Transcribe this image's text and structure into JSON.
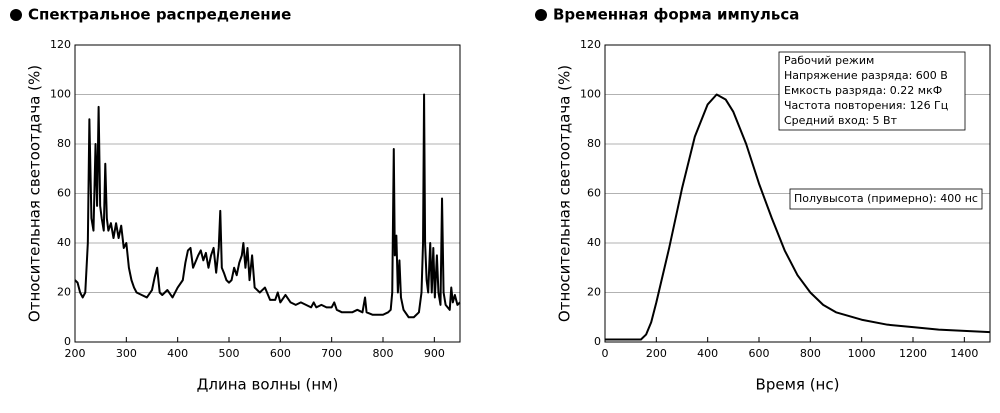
{
  "chart_data": [
    {
      "type": "line",
      "title": "Спектральное распределение",
      "xlabel": "Длина волны (нм)",
      "ylabel": "Относительная светоотдача (%)",
      "xlim": [
        200,
        950
      ],
      "ylim": [
        0,
        120
      ],
      "xticks": [
        200,
        300,
        400,
        500,
        600,
        700,
        800,
        900
      ],
      "yticks": [
        0,
        20,
        40,
        60,
        80,
        100,
        120
      ],
      "grid": true,
      "color": "#000000",
      "x": [
        200,
        205,
        210,
        215,
        220,
        225,
        228,
        232,
        236,
        240,
        243,
        246,
        249,
        252,
        256,
        259,
        262,
        265,
        270,
        275,
        280,
        285,
        290,
        295,
        300,
        305,
        310,
        315,
        320,
        330,
        340,
        350,
        355,
        360,
        365,
        370,
        380,
        390,
        400,
        410,
        415,
        420,
        425,
        430,
        440,
        445,
        450,
        455,
        460,
        465,
        470,
        475,
        480,
        483,
        486,
        490,
        495,
        500,
        505,
        510,
        515,
        520,
        525,
        528,
        532,
        536,
        540,
        545,
        550,
        560,
        570,
        580,
        590,
        595,
        600,
        610,
        620,
        630,
        640,
        650,
        660,
        665,
        670,
        680,
        690,
        700,
        705,
        710,
        720,
        730,
        740,
        750,
        760,
        765,
        768,
        780,
        790,
        800,
        810,
        815,
        818,
        821,
        823,
        826,
        829,
        832,
        835,
        840,
        850,
        860,
        870,
        875,
        878,
        880,
        882,
        885,
        888,
        892,
        895,
        898,
        901,
        905,
        908,
        912,
        915,
        918,
        922,
        926,
        930,
        933,
        936,
        940,
        945,
        950
      ],
      "values": [
        25,
        24,
        20,
        18,
        20,
        40,
        90,
        50,
        45,
        80,
        55,
        95,
        55,
        50,
        45,
        72,
        50,
        45,
        48,
        42,
        48,
        42,
        47,
        38,
        40,
        30,
        25,
        22,
        20,
        19,
        18,
        21,
        26,
        30,
        20,
        19,
        21,
        18,
        22,
        25,
        32,
        37,
        38,
        30,
        35,
        37,
        33,
        36,
        30,
        35,
        38,
        28,
        38,
        53,
        30,
        28,
        25,
        24,
        25,
        30,
        27,
        32,
        35,
        40,
        30,
        38,
        25,
        35,
        22,
        20,
        22,
        17,
        17,
        20,
        16,
        19,
        16,
        15,
        16,
        15,
        14,
        16,
        14,
        15,
        14,
        14,
        16,
        13,
        12,
        12,
        12,
        13,
        12,
        18,
        12,
        11,
        11,
        11,
        12,
        13,
        20,
        78,
        35,
        43,
        20,
        33,
        18,
        13,
        10,
        10,
        12,
        20,
        40,
        100,
        40,
        25,
        20,
        40,
        20,
        38,
        18,
        35,
        20,
        15,
        58,
        20,
        15,
        14,
        13,
        22,
        16,
        19,
        15,
        16
      ]
    },
    {
      "type": "line",
      "title": "Временная форма импульса",
      "xlabel": "Время (нс)",
      "ylabel": "Относительная светоотдача (%)",
      "xlim": [
        0,
        1500
      ],
      "ylim": [
        0,
        120
      ],
      "xticks": [
        0,
        200,
        400,
        600,
        800,
        1000,
        1200,
        1400
      ],
      "yticks": [
        0,
        20,
        40,
        60,
        80,
        100,
        120
      ],
      "grid": true,
      "color": "#000000",
      "x": [
        0,
        100,
        140,
        160,
        180,
        200,
        250,
        300,
        350,
        400,
        435,
        470,
        500,
        550,
        600,
        650,
        700,
        750,
        800,
        850,
        900,
        1000,
        1100,
        1200,
        1300,
        1400,
        1500
      ],
      "values": [
        1,
        1,
        1,
        3,
        8,
        16,
        38,
        62,
        83,
        96,
        100,
        98,
        93,
        80,
        64,
        50,
        37,
        27,
        20,
        15,
        12,
        9,
        7,
        6,
        5,
        4.5,
        4
      ],
      "info_box": [
        "Рабочий режим",
        "Напряжение разряда: 600 В",
        "Емкость разряда: 0.22 мкФ",
        "Частота повторения: 126 Гц",
        "Средний вход: 5 Вт"
      ],
      "note": "Полувысота (примерно): 400 нс"
    }
  ]
}
